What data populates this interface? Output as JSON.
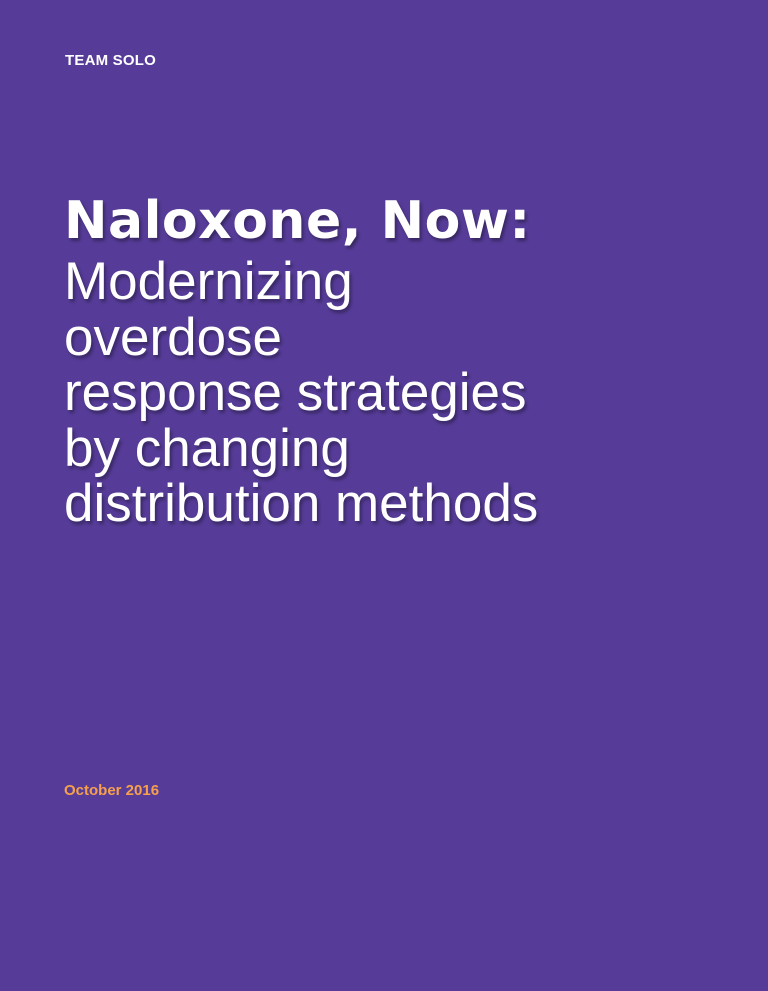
{
  "header": {
    "team_label": "TEAM SOLO"
  },
  "title": {
    "main": "Naloxone, Now:",
    "subtitle_lines": [
      "Modernizing",
      "overdose",
      "response strategies",
      "by changing",
      "distribution methods"
    ]
  },
  "footer": {
    "date": "October 2016"
  },
  "colors": {
    "background": "#563c98",
    "text": "#ffffff",
    "accent": "#f6a04d"
  }
}
